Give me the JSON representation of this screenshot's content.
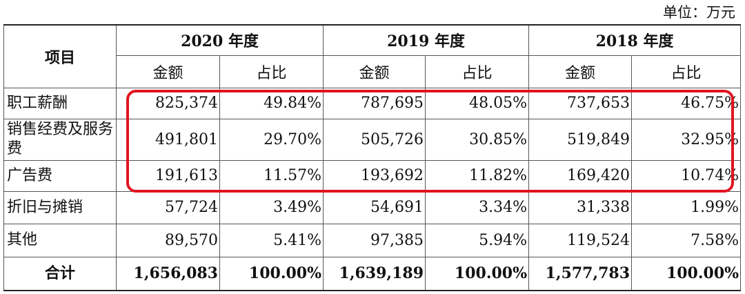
{
  "unit_label": "单位：万元",
  "table": {
    "item_header": "项目",
    "years": [
      "2020 年度",
      "2019 年度",
      "2018 年度"
    ],
    "amount_header": "金额",
    "ratio_header": "占比",
    "rows": [
      {
        "label": "职工薪酬",
        "values": [
          "825,374",
          "49.84%",
          "787,695",
          "48.05%",
          "737,653",
          "46.75%"
        ]
      },
      {
        "label": "销售经费及服务费",
        "values": [
          "491,801",
          "29.70%",
          "505,726",
          "30.85%",
          "519,849",
          "32.95%"
        ]
      },
      {
        "label": "广告费",
        "values": [
          "191,613",
          "11.57%",
          "193,692",
          "11.82%",
          "169,420",
          "10.74%"
        ]
      },
      {
        "label": "折旧与摊销",
        "values": [
          "57,724",
          "3.49%",
          "54,691",
          "3.34%",
          "31,338",
          "1.99%"
        ]
      },
      {
        "label": "其他",
        "values": [
          "89,570",
          "5.41%",
          "97,385",
          "5.94%",
          "119,524",
          "7.58%"
        ]
      },
      {
        "label": "合计",
        "values": [
          "1,656,083",
          "100.00%",
          "1,639,189",
          "100.00%",
          "1,577,783",
          "100.00%"
        ]
      }
    ]
  },
  "highlight": {
    "color": "#e0141f"
  }
}
